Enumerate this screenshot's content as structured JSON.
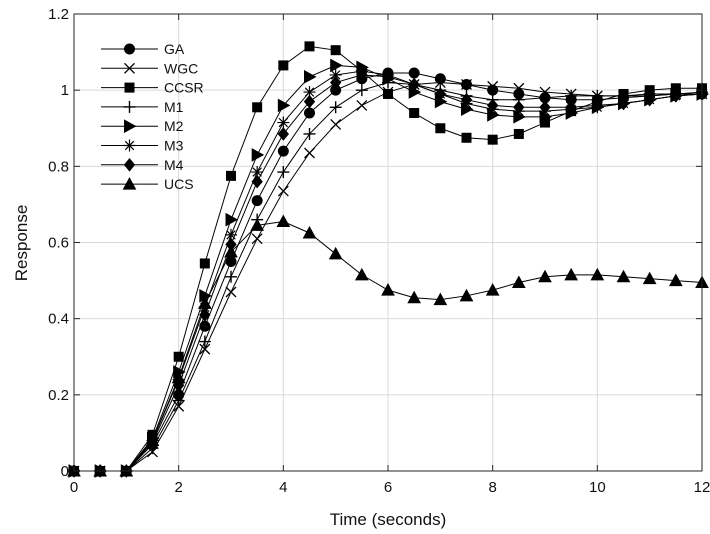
{
  "chart_data": {
    "type": "line",
    "title": "",
    "xlabel": "Time (seconds)",
    "ylabel": "Response",
    "xlim": [
      0,
      12
    ],
    "ylim": [
      0,
      1.2
    ],
    "xticks": [
      0,
      2,
      4,
      6,
      8,
      10,
      12
    ],
    "yticks": [
      0,
      0.2,
      0.4,
      0.6,
      0.8,
      1,
      1.2
    ],
    "ytick_labels": [
      "0",
      "0.2",
      "0.4",
      "0.6",
      "0.8",
      "1",
      "1.2"
    ],
    "grid": true,
    "legend_position": "top-left",
    "color": "#000000",
    "x": [
      0,
      0.5,
      1,
      1.5,
      2,
      2.5,
      3,
      3.5,
      4,
      4.5,
      5,
      5.5,
      6,
      6.5,
      7,
      7.5,
      8,
      8.5,
      9,
      9.5,
      10,
      10.5,
      11,
      11.5,
      12
    ],
    "series": [
      {
        "name": "GA",
        "marker": "circle",
        "values": [
          0,
          0,
          0,
          0.07,
          0.2,
          0.38,
          0.55,
          0.71,
          0.84,
          0.94,
          1.0,
          1.03,
          1.045,
          1.045,
          1.03,
          1.015,
          1.0,
          0.99,
          0.98,
          0.975,
          0.975,
          0.98,
          0.985,
          0.99,
          0.99
        ]
      },
      {
        "name": "WGC",
        "marker": "x",
        "values": [
          0,
          0,
          0,
          0.05,
          0.17,
          0.32,
          0.47,
          0.61,
          0.735,
          0.835,
          0.91,
          0.96,
          0.995,
          1.015,
          1.02,
          1.015,
          1.01,
          1.005,
          0.995,
          0.99,
          0.985,
          0.985,
          0.985,
          0.99,
          0.99
        ]
      },
      {
        "name": "CCSR",
        "marker": "square",
        "values": [
          0,
          0,
          0,
          0.095,
          0.3,
          0.545,
          0.775,
          0.955,
          1.065,
          1.115,
          1.105,
          1.05,
          0.99,
          0.94,
          0.9,
          0.875,
          0.87,
          0.885,
          0.915,
          0.945,
          0.97,
          0.99,
          1.0,
          1.005,
          1.005
        ]
      },
      {
        "name": "M1",
        "marker": "plus",
        "values": [
          0,
          0,
          0,
          0.06,
          0.185,
          0.34,
          0.51,
          0.66,
          0.785,
          0.885,
          0.955,
          1.0,
          1.02,
          1.015,
          1.0,
          0.985,
          0.975,
          0.975,
          0.98,
          0.985,
          0.985,
          0.985,
          0.99,
          0.99,
          0.995
        ]
      },
      {
        "name": "M2",
        "marker": "triangle-right",
        "values": [
          0,
          0,
          0,
          0.085,
          0.26,
          0.46,
          0.66,
          0.83,
          0.96,
          1.035,
          1.065,
          1.06,
          1.03,
          0.995,
          0.97,
          0.95,
          0.935,
          0.93,
          0.93,
          0.94,
          0.955,
          0.965,
          0.975,
          0.985,
          0.99
        ]
      },
      {
        "name": "M3",
        "marker": "asterisk",
        "values": [
          0,
          0,
          0,
          0.08,
          0.24,
          0.43,
          0.62,
          0.785,
          0.915,
          0.995,
          1.04,
          1.05,
          1.04,
          1.015,
          0.99,
          0.965,
          0.95,
          0.945,
          0.945,
          0.95,
          0.955,
          0.965,
          0.975,
          0.985,
          0.99
        ]
      },
      {
        "name": "M4",
        "marker": "diamond",
        "values": [
          0,
          0,
          0,
          0.075,
          0.225,
          0.41,
          0.595,
          0.76,
          0.885,
          0.97,
          1.02,
          1.04,
          1.035,
          1.015,
          0.99,
          0.975,
          0.96,
          0.955,
          0.955,
          0.955,
          0.96,
          0.965,
          0.975,
          0.985,
          0.99
        ]
      },
      {
        "name": "UCS",
        "marker": "triangle-up",
        "values": [
          0,
          0,
          0,
          0.08,
          0.245,
          0.44,
          0.575,
          0.645,
          0.655,
          0.625,
          0.57,
          0.515,
          0.475,
          0.455,
          0.45,
          0.46,
          0.475,
          0.495,
          0.51,
          0.515,
          0.515,
          0.51,
          0.505,
          0.5,
          0.495
        ]
      }
    ]
  }
}
